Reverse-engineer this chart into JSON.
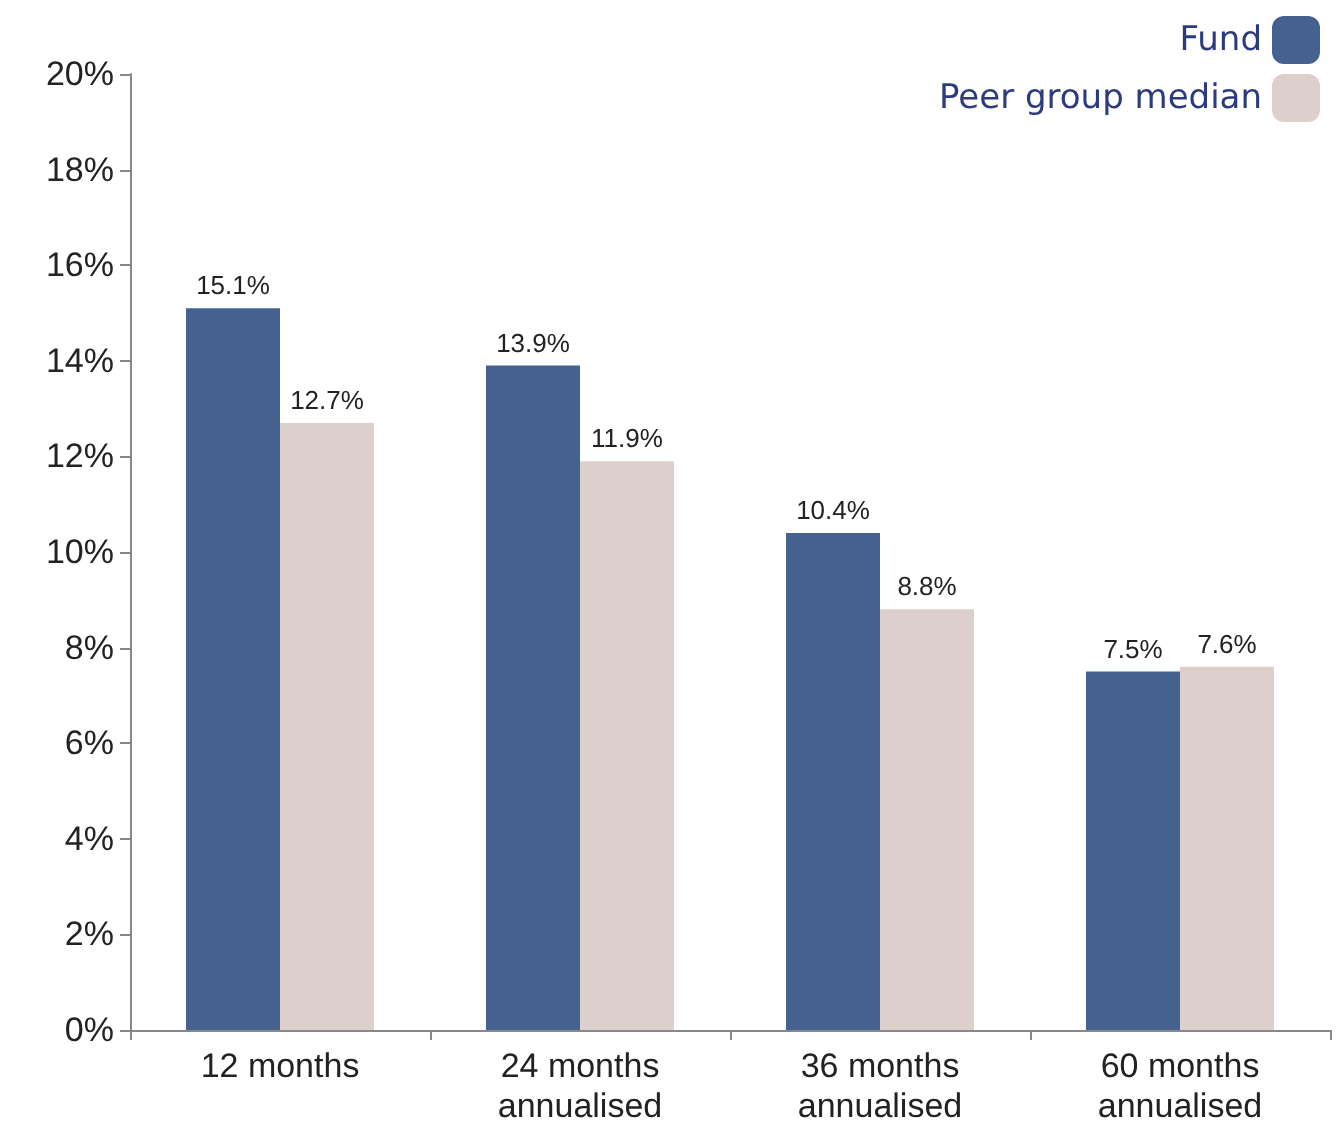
{
  "chart_data": {
    "type": "bar",
    "categories": [
      "12 months",
      "24 months\nannualised",
      "36 months\nannualised",
      "60 months\nannualised"
    ],
    "series": [
      {
        "name": "Fund",
        "color": "#44618f",
        "values": [
          15.1,
          13.9,
          10.4,
          7.5
        ],
        "value_labels": [
          "15.1%",
          "13.9%",
          "10.4%",
          "7.5%"
        ]
      },
      {
        "name": "Peer group median",
        "color": "#dccfcc",
        "values": [
          12.7,
          11.9,
          8.8,
          7.6
        ],
        "value_labels": [
          "12.7%",
          "11.9%",
          "8.8%",
          "7.6%"
        ]
      }
    ],
    "ylim": [
      0,
      20
    ],
    "yticks": [
      {
        "value": 0,
        "label": "0%"
      },
      {
        "value": 2,
        "label": "2%"
      },
      {
        "value": 4,
        "label": "4%"
      },
      {
        "value": 6,
        "label": "6%"
      },
      {
        "value": 8,
        "label": "8%"
      },
      {
        "value": 10,
        "label": "10%"
      },
      {
        "value": 12,
        "label": "12%"
      },
      {
        "value": 14,
        "label": "14%"
      },
      {
        "value": 16,
        "label": "16%"
      },
      {
        "value": 18,
        "label": "18%"
      },
      {
        "value": 20,
        "label": "20%"
      }
    ],
    "grid": false,
    "legend": "top right"
  }
}
